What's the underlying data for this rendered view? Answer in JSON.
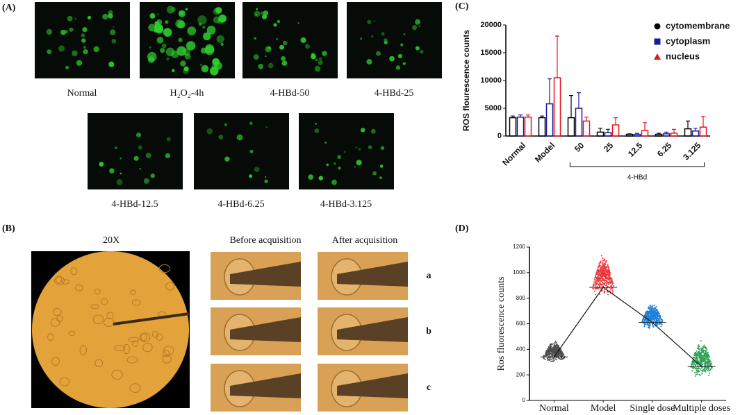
{
  "panels": {
    "A": {
      "letter": "(A)",
      "labels": [
        "Normal",
        "H₂O₂-4h",
        "4-HBd-50",
        "4-HBd-25",
        "4-HBd-12.5",
        "4-HBd-6.25",
        "4-HBd-3.125"
      ]
    },
    "B": {
      "letter": "(B)",
      "magnification": "20X",
      "columns": [
        "Before acquisition",
        "After acquisition"
      ],
      "rows": [
        "a",
        "b",
        "c"
      ]
    },
    "C": {
      "letter": "(C)"
    },
    "D": {
      "letter": "(D)"
    }
  },
  "chart_data": [
    {
      "type": "bar",
      "y_label": "ROS flourescence counts",
      "categories": [
        "Normal",
        "Model",
        "50",
        "25",
        "12.5",
        "6.25",
        "3.125"
      ],
      "group_label": "4-HBd",
      "series": [
        {
          "name": "cytomembrane",
          "color": "#000000",
          "marker": "circle",
          "values": [
            3300,
            3300,
            3300,
            700,
            300,
            300,
            1300
          ],
          "errors": [
            300,
            300,
            4000,
            700,
            100,
            200,
            1400
          ]
        },
        {
          "name": "cytoplasm",
          "color": "#1a1a9c",
          "marker": "square",
          "values": [
            3400,
            5800,
            5000,
            600,
            300,
            400,
            900
          ],
          "errors": [
            400,
            4500,
            2800,
            600,
            200,
            300,
            500
          ]
        },
        {
          "name": "nucleus",
          "color": "#e8141c",
          "marker": "triangle",
          "values": [
            3400,
            10500,
            2700,
            2000,
            1000,
            500,
            1600
          ],
          "errors": [
            400,
            7500,
            700,
            1300,
            1400,
            700,
            1900
          ]
        }
      ],
      "ylim": [
        0,
        20000
      ],
      "yticks": [
        0,
        5000,
        10000,
        15000,
        20000
      ]
    },
    {
      "type": "strip",
      "y_label": "Ros fluorescence counts",
      "categories": [
        "Normal",
        "Model",
        "Single dose",
        "Multiple doses"
      ],
      "values": [
        340,
        885,
        610,
        265
      ],
      "ranges": [
        [
          290,
          470
        ],
        [
          790,
          1150
        ],
        [
          540,
          770
        ],
        [
          160,
          480
        ]
      ],
      "colors": [
        "#4d4d4d",
        "#e8383d",
        "#1f7fd8",
        "#2ea35a"
      ],
      "ylim": [
        0,
        1200
      ],
      "yticks": [
        0,
        200,
        400,
        600,
        800,
        1000,
        1200
      ]
    }
  ]
}
